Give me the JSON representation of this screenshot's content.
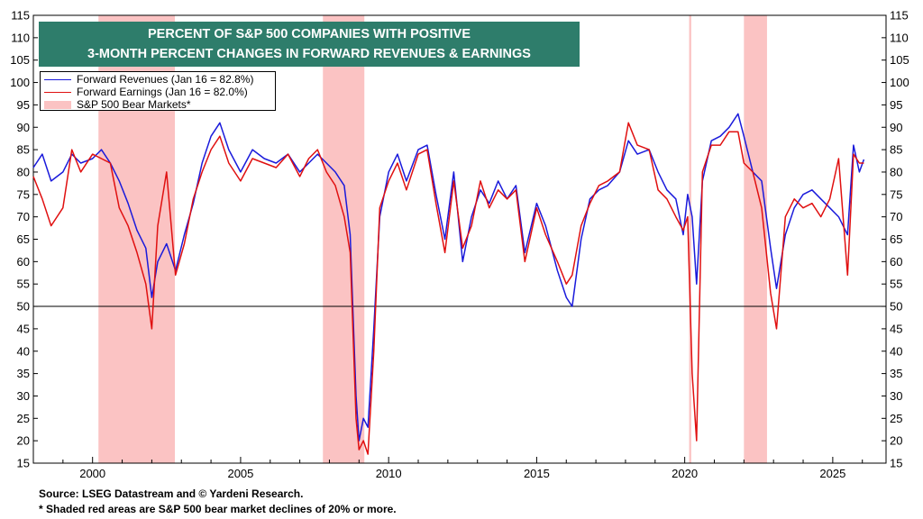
{
  "chart_data": {
    "type": "line",
    "title": "PERCENT OF S&P 500 COMPANIES WITH POSITIVE",
    "subtitle": "3-MONTH PERCENT CHANGES IN FORWARD REVENUES & EARNINGS",
    "xlabel": "",
    "ylabel": "",
    "xlim": [
      1998,
      2026.8
    ],
    "ylim": [
      15,
      115
    ],
    "yticks": [
      15,
      20,
      25,
      30,
      35,
      40,
      45,
      50,
      55,
      60,
      65,
      70,
      75,
      80,
      85,
      90,
      95,
      100,
      105,
      110,
      115
    ],
    "xtick_labels": [
      "2000",
      "2005",
      "2010",
      "2015",
      "2020",
      "2025"
    ],
    "reference_line": 50,
    "legend_placement": "top-left",
    "grid": false,
    "colors": {
      "revenues": "#1a1adb",
      "earnings": "#e01010",
      "bear": "#fbc3c3",
      "title_bg": "#2e7d6b"
    },
    "bear_markets": [
      [
        2000.2,
        2002.78
      ],
      [
        2007.78,
        2009.18
      ],
      [
        2020.15,
        2020.22
      ],
      [
        2022.0,
        2022.78
      ]
    ],
    "legend": [
      {
        "label": "Forward Revenues (Jan 16 = 82.8%)",
        "color": "#1a1adb",
        "kind": "line"
      },
      {
        "label": "Forward Earnings (Jan 16 = 82.0%)",
        "color": "#e01010",
        "kind": "line"
      },
      {
        "label": "S&P 500 Bear Markets*",
        "color": "#fbc3c3",
        "kind": "box"
      }
    ],
    "series": [
      {
        "name": "Forward Revenues",
        "color": "#1a1adb",
        "x": [
          1998.0,
          1998.3,
          1998.6,
          1999.0,
          1999.3,
          1999.6,
          2000.0,
          2000.3,
          2000.6,
          2000.9,
          2001.2,
          2001.5,
          2001.8,
          2002.0,
          2002.2,
          2002.5,
          2002.8,
          2003.1,
          2003.4,
          2003.7,
          2004.0,
          2004.3,
          2004.6,
          2005.0,
          2005.4,
          2005.8,
          2006.2,
          2006.6,
          2007.0,
          2007.3,
          2007.6,
          2007.9,
          2008.2,
          2008.5,
          2008.7,
          2008.9,
          2009.0,
          2009.15,
          2009.3,
          2009.5,
          2009.7,
          2010.0,
          2010.3,
          2010.6,
          2011.0,
          2011.3,
          2011.6,
          2011.9,
          2012.2,
          2012.5,
          2012.8,
          2013.1,
          2013.4,
          2013.7,
          2014.0,
          2014.3,
          2014.6,
          2015.0,
          2015.3,
          2015.7,
          2016.0,
          2016.2,
          2016.5,
          2016.8,
          2017.1,
          2017.4,
          2017.8,
          2018.1,
          2018.4,
          2018.8,
          2019.1,
          2019.4,
          2019.7,
          2019.95,
          2020.1,
          2020.25,
          2020.4,
          2020.6,
          2020.9,
          2021.2,
          2021.5,
          2021.8,
          2022.0,
          2022.3,
          2022.6,
          2022.9,
          2023.1,
          2023.4,
          2023.7,
          2024.0,
          2024.3,
          2024.6,
          2024.9,
          2025.2,
          2025.5,
          2025.7,
          2025.9,
          2026.05
        ],
        "y": [
          81,
          84,
          78,
          80,
          84,
          82,
          83,
          85,
          82,
          78,
          73,
          67,
          63,
          52,
          60,
          64,
          58,
          66,
          73,
          82,
          88,
          91,
          85,
          80,
          85,
          83,
          82,
          84,
          80,
          82,
          84,
          82,
          80,
          77,
          66,
          30,
          20,
          25,
          23,
          45,
          70,
          80,
          84,
          78,
          85,
          86,
          75,
          65,
          80,
          60,
          70,
          76,
          73,
          78,
          74,
          77,
          62,
          73,
          68,
          58,
          52,
          50,
          65,
          74,
          76,
          77,
          80,
          87,
          84,
          85,
          80,
          76,
          74,
          66,
          75,
          70,
          55,
          78,
          87,
          88,
          90,
          93,
          88,
          80,
          78,
          63,
          54,
          66,
          72,
          75,
          76,
          74,
          72,
          70,
          66,
          86,
          80,
          82.8
        ]
      },
      {
        "name": "Forward Earnings",
        "color": "#e01010",
        "x": [
          1998.0,
          1998.3,
          1998.6,
          1999.0,
          1999.3,
          1999.6,
          2000.0,
          2000.3,
          2000.6,
          2000.9,
          2001.2,
          2001.5,
          2001.8,
          2002.0,
          2002.2,
          2002.5,
          2002.8,
          2003.1,
          2003.4,
          2003.7,
          2004.0,
          2004.3,
          2004.6,
          2005.0,
          2005.4,
          2005.8,
          2006.2,
          2006.6,
          2007.0,
          2007.3,
          2007.6,
          2007.9,
          2008.2,
          2008.5,
          2008.7,
          2008.9,
          2009.0,
          2009.15,
          2009.3,
          2009.5,
          2009.7,
          2010.0,
          2010.3,
          2010.6,
          2011.0,
          2011.3,
          2011.6,
          2011.9,
          2012.2,
          2012.5,
          2012.8,
          2013.1,
          2013.4,
          2013.7,
          2014.0,
          2014.3,
          2014.6,
          2015.0,
          2015.3,
          2015.7,
          2016.0,
          2016.2,
          2016.5,
          2016.8,
          2017.1,
          2017.4,
          2017.8,
          2018.1,
          2018.4,
          2018.8,
          2019.1,
          2019.4,
          2019.7,
          2019.95,
          2020.1,
          2020.25,
          2020.4,
          2020.6,
          2020.9,
          2021.2,
          2021.5,
          2021.8,
          2022.0,
          2022.3,
          2022.6,
          2022.9,
          2023.1,
          2023.4,
          2023.7,
          2024.0,
          2024.3,
          2024.6,
          2024.9,
          2025.2,
          2025.5,
          2025.7,
          2025.9,
          2026.05
        ],
        "y": [
          79,
          74,
          68,
          72,
          85,
          80,
          84,
          83,
          82,
          72,
          68,
          62,
          55,
          45,
          68,
          80,
          57,
          64,
          74,
          80,
          85,
          88,
          82,
          78,
          83,
          82,
          81,
          84,
          79,
          83,
          85,
          80,
          77,
          70,
          62,
          25,
          18,
          20,
          17,
          40,
          72,
          78,
          82,
          76,
          84,
          85,
          73,
          62,
          78,
          63,
          68,
          78,
          72,
          76,
          74,
          76,
          60,
          72,
          66,
          60,
          55,
          57,
          68,
          73,
          77,
          78,
          80,
          91,
          86,
          85,
          76,
          74,
          70,
          67,
          70,
          35,
          20,
          80,
          86,
          86,
          89,
          89,
          82,
          80,
          72,
          53,
          45,
          70,
          74,
          72,
          73,
          70,
          74,
          83,
          57,
          84,
          82,
          82.0
        ]
      }
    ]
  },
  "footer": {
    "source": "Source: LSEG Datastream and © Yardeni Research.",
    "note": "* Shaded red areas are S&P 500 bear market declines of 20% or more."
  }
}
